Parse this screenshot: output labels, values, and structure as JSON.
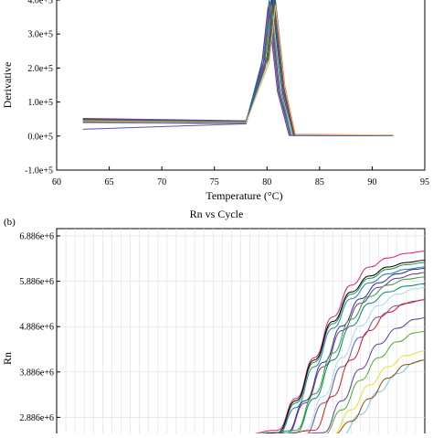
{
  "chart_data": [
    {
      "panel": "(a)",
      "type": "line",
      "title": "",
      "xlabel": "Temperature (°C)",
      "ylabel": "Derivative",
      "xlim": [
        60,
        95
      ],
      "ylim": [
        -100000,
        400000
      ],
      "x_ticks": [
        60,
        65,
        70,
        75,
        80,
        85,
        90,
        95
      ],
      "x_tick_labels": [
        "60",
        "65",
        "70",
        "75",
        "80",
        "85",
        "90",
        "95"
      ],
      "y_ticks": [
        -100000,
        0,
        100000,
        200000,
        300000,
        400000
      ],
      "y_tick_labels": [
        "-1.0e+5",
        "0.0e+5",
        "1.0e+5",
        "2.0e+5",
        "3.0e+5",
        "4.0e+5"
      ],
      "grid": false,
      "series": [
        {
          "color": "#e0187c",
          "x": [
            62.5,
            78,
            80,
            80.6,
            81.5,
            82.5,
            92
          ],
          "y": [
            52000,
            45000,
            230000,
            420000,
            150000,
            5000,
            3000
          ]
        },
        {
          "color": "#1a9641",
          "x": [
            62.5,
            78,
            79.8,
            80.4,
            81.3,
            82.3,
            92
          ],
          "y": [
            48000,
            42000,
            230000,
            410000,
            140000,
            4000,
            2000
          ]
        },
        {
          "color": "#2c7bb6",
          "x": [
            62.5,
            78,
            79.6,
            80.2,
            81.1,
            82.2,
            92
          ],
          "y": [
            45000,
            40000,
            230000,
            400000,
            135000,
            3000,
            2000
          ]
        },
        {
          "color": "#1f3a93",
          "x": [
            62.5,
            78,
            79.9,
            80.5,
            81.4,
            82.4,
            92
          ],
          "y": [
            50000,
            43000,
            240000,
            415000,
            140000,
            2000,
            1000
          ]
        },
        {
          "color": "#7b3294",
          "x": [
            62.5,
            78,
            79.7,
            80.3,
            81.2,
            82.3,
            92
          ],
          "y": [
            40000,
            38000,
            220000,
            395000,
            130000,
            3000,
            2000
          ]
        },
        {
          "color": "#33a02c",
          "x": [
            62.5,
            78,
            80.1,
            80.7,
            81.6,
            82.6,
            92
          ],
          "y": [
            46000,
            41000,
            225000,
            405000,
            145000,
            4000,
            1000
          ]
        },
        {
          "color": "#8c510a",
          "x": [
            62.5,
            78,
            80.0,
            80.6,
            81.5,
            82.5,
            92
          ],
          "y": [
            44000,
            39000,
            220000,
            390000,
            140000,
            3000,
            2000
          ]
        },
        {
          "color": "#5e3c99",
          "x": [
            62.5,
            78,
            79.5,
            80.1,
            81.0,
            82.1,
            92
          ],
          "y": [
            42000,
            37000,
            210000,
            380000,
            130000,
            2000,
            1000
          ]
        },
        {
          "color": "#018571",
          "x": [
            62.5,
            78,
            80.2,
            80.8,
            81.7,
            82.7,
            92
          ],
          "y": [
            47000,
            42000,
            230000,
            400000,
            145000,
            3000,
            2000
          ]
        },
        {
          "color": "#abd9e9",
          "x": [
            62.5,
            78,
            79.9,
            80.5,
            81.4,
            82.4,
            92
          ],
          "y": [
            38000,
            35000,
            200000,
            370000,
            125000,
            4000,
            3000
          ]
        },
        {
          "color": "#d7191c",
          "x": [
            62.5,
            78,
            80.1,
            80.7,
            81.6,
            82.6,
            92
          ],
          "y": [
            49000,
            44000,
            235000,
            410000,
            145000,
            3000,
            2000
          ]
        },
        {
          "color": "#4dac26",
          "x": [
            62.5,
            78,
            79.8,
            80.4,
            81.3,
            82.3,
            92
          ],
          "y": [
            43000,
            40000,
            215000,
            385000,
            135000,
            2000,
            1000
          ]
        },
        {
          "color": "#6a51a3",
          "x": [
            62.5,
            78,
            79.6,
            80.2,
            81.1,
            82.2,
            92
          ],
          "y": [
            20000,
            36000,
            205000,
            375000,
            130000,
            2000,
            1000
          ]
        },
        {
          "color": "#0571b0",
          "x": [
            62.5,
            78,
            80.0,
            80.6,
            81.5,
            82.5,
            92
          ],
          "y": [
            51000,
            44000,
            235000,
            408000,
            140000,
            3000,
            2000
          ]
        },
        {
          "color": "#fdae61",
          "x": [
            62.5,
            78,
            80.2,
            80.8,
            81.7,
            82.7,
            92
          ],
          "y": [
            45000,
            40000,
            215000,
            385000,
            140000,
            4000,
            3000
          ]
        }
      ]
    },
    {
      "panel": "(b)",
      "type": "line",
      "title": "Rn vs Cycle",
      "xlabel": "",
      "ylabel": "Rn",
      "ylim": [
        1886000,
        6886000
      ],
      "y_ticks": [
        2886000,
        3886000,
        4886000,
        5886000,
        6886000
      ],
      "y_tick_labels": [
        "2.886e+6",
        "3.886e+6",
        "4.886e+6",
        "5.886e+6",
        "6.886e+6"
      ],
      "x_domain": [
        0,
        40
      ],
      "grid": true,
      "series": [
        {
          "color": "#e0187c",
          "x": [
            20,
            24,
            26,
            28,
            30,
            32,
            34,
            36,
            38,
            40
          ],
          "y": [
            1886000,
            2600000,
            3300000,
            4200000,
            5100000,
            5800000,
            6200000,
            6400000,
            6500000,
            6550000
          ]
        },
        {
          "color": "#1a9641",
          "x": [
            20,
            24,
            26,
            28,
            30,
            32,
            34,
            36,
            38,
            40
          ],
          "y": [
            1886000,
            2500000,
            3200000,
            4100000,
            4950000,
            5600000,
            5950000,
            6150000,
            6250000,
            6300000
          ]
        },
        {
          "color": "#2c7bb6",
          "x": [
            20,
            24,
            26,
            28,
            30,
            32,
            34,
            36,
            38,
            40
          ],
          "y": [
            1886000,
            2450000,
            3100000,
            4000000,
            4850000,
            5500000,
            5850000,
            6050000,
            6150000,
            6200000
          ]
        },
        {
          "color": "#1f3a93",
          "x": [
            21,
            25,
            27,
            29,
            31,
            33,
            35,
            37,
            39,
            40
          ],
          "y": [
            1886000,
            2550000,
            3250000,
            4100000,
            4900000,
            5500000,
            5850000,
            6050000,
            6150000,
            6170000
          ]
        },
        {
          "color": "#7b3294",
          "x": [
            21,
            25,
            27,
            29,
            31,
            33,
            35,
            37,
            39,
            40
          ],
          "y": [
            1886000,
            2500000,
            3200000,
            4000000,
            4800000,
            5400000,
            5750000,
            5950000,
            6050000,
            6080000
          ]
        },
        {
          "color": "#000000",
          "x": [
            20,
            24,
            26,
            28,
            30,
            32,
            34,
            36,
            38,
            40
          ],
          "y": [
            1886000,
            2550000,
            3250000,
            4150000,
            5000000,
            5650000,
            6000000,
            6200000,
            6300000,
            6350000
          ]
        },
        {
          "color": "#33a02c",
          "x": [
            22,
            26,
            28,
            30,
            32,
            34,
            36,
            38,
            40
          ],
          "y": [
            1886000,
            2600000,
            3400000,
            4300000,
            5050000,
            5550000,
            5800000,
            5930000,
            5980000
          ]
        },
        {
          "color": "#018571",
          "x": [
            22,
            26,
            28,
            30,
            32,
            34,
            36,
            38,
            40
          ],
          "y": [
            1886000,
            2550000,
            3300000,
            4150000,
            4900000,
            5400000,
            5650000,
            5780000,
            5830000
          ]
        },
        {
          "color": "#abd9e9",
          "x": [
            23,
            27,
            29,
            31,
            33,
            35,
            37,
            39,
            40
          ],
          "y": [
            1886000,
            2600000,
            3350000,
            4200000,
            4900000,
            5350000,
            5600000,
            5720000,
            5750000
          ]
        },
        {
          "color": "#6a51a3",
          "x": [
            23,
            27,
            29,
            31,
            33,
            35,
            37,
            39,
            40
          ],
          "y": [
            1886000,
            2500000,
            3200000,
            4000000,
            4650000,
            5100000,
            5350000,
            5450000,
            5480000
          ]
        },
        {
          "color": "#d7191c",
          "x": [
            24,
            28,
            30,
            32,
            34,
            36,
            38,
            40
          ],
          "y": [
            1886000,
            2600000,
            3350000,
            4150000,
            4800000,
            5200000,
            5400000,
            5480000
          ]
        },
        {
          "color": "#5e3c99",
          "x": [
            25,
            29,
            31,
            33,
            35,
            37,
            39,
            40
          ],
          "y": [
            1886000,
            2550000,
            3250000,
            3950000,
            4500000,
            4850000,
            5050000,
            5080000
          ]
        },
        {
          "color": "#4dac26",
          "x": [
            25,
            29,
            31,
            33,
            35,
            37,
            39,
            40
          ],
          "y": [
            1886000,
            2450000,
            3050000,
            3700000,
            4200000,
            4550000,
            4750000,
            4780000
          ]
        },
        {
          "color": "#e7e12a",
          "x": [
            26,
            30,
            32,
            34,
            36,
            38,
            40
          ],
          "y": [
            1886000,
            2500000,
            3050000,
            3600000,
            4000000,
            4250000,
            4350000
          ]
        },
        {
          "color": "#74c5e8",
          "x": [
            27,
            31,
            33,
            35,
            37,
            39,
            40
          ],
          "y": [
            1886000,
            2450000,
            2950000,
            3450000,
            3850000,
            4100000,
            4150000
          ]
        },
        {
          "color": "#8c510a",
          "x": [
            26,
            30,
            32,
            34,
            36,
            38,
            40
          ],
          "y": [
            1886000,
            2350000,
            2800000,
            3300000,
            3750000,
            4050000,
            4150000
          ]
        }
      ]
    }
  ],
  "panel_b_label": "(b)",
  "panel_b_title": "Rn vs Cycle"
}
